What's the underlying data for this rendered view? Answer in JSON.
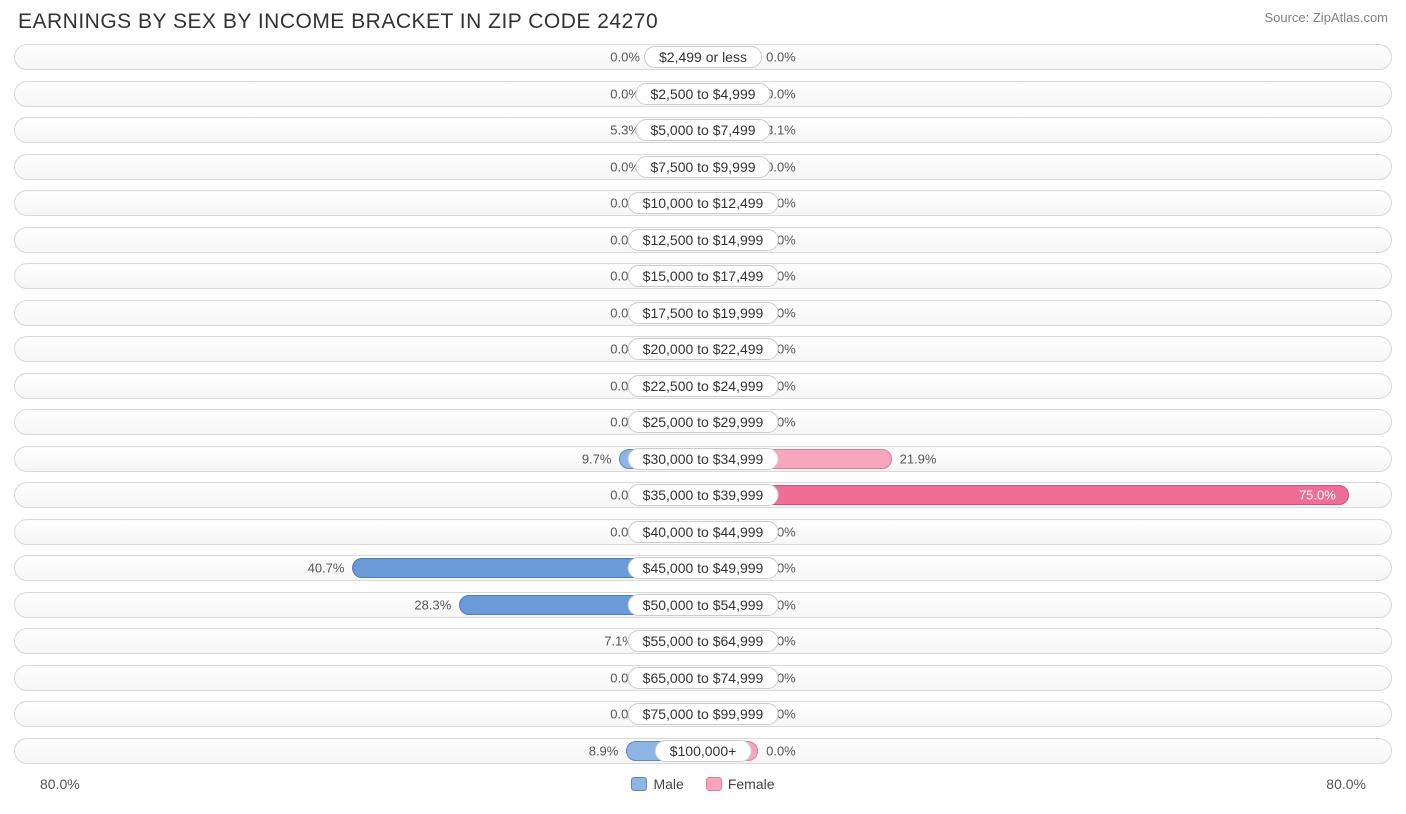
{
  "title": "EARNINGS BY SEX BY INCOME BRACKET IN ZIP CODE 24270",
  "source": "Source: ZipAtlas.com",
  "axis_max_label": "80.0%",
  "axis_max_value": 80.0,
  "min_bar_pct": 8.0,
  "colors": {
    "male_fill": "#8fb5e4",
    "male_border": "#5a8acb",
    "male_strong_fill": "#6a9ad8",
    "male_strong_border": "#4a7bc0",
    "female_fill": "#f7a6bd",
    "female_border": "#e77a9b",
    "female_strong_fill": "#ef6e95",
    "female_strong_border": "#d85079",
    "track_border": "#d9d9d9",
    "text": "#333333",
    "pct_text": "#555555"
  },
  "legend": {
    "male": "Male",
    "female": "Female"
  },
  "rows": [
    {
      "label": "$2,499 or less",
      "male": 0.0,
      "female": 0.0
    },
    {
      "label": "$2,500 to $4,999",
      "male": 0.0,
      "female": 0.0
    },
    {
      "label": "$5,000 to $7,499",
      "male": 5.3,
      "female": 3.1
    },
    {
      "label": "$7,500 to $9,999",
      "male": 0.0,
      "female": 0.0
    },
    {
      "label": "$10,000 to $12,499",
      "male": 0.0,
      "female": 0.0
    },
    {
      "label": "$12,500 to $14,999",
      "male": 0.0,
      "female": 0.0
    },
    {
      "label": "$15,000 to $17,499",
      "male": 0.0,
      "female": 0.0
    },
    {
      "label": "$17,500 to $19,999",
      "male": 0.0,
      "female": 0.0
    },
    {
      "label": "$20,000 to $22,499",
      "male": 0.0,
      "female": 0.0
    },
    {
      "label": "$22,500 to $24,999",
      "male": 0.0,
      "female": 0.0
    },
    {
      "label": "$25,000 to $29,999",
      "male": 0.0,
      "female": 0.0
    },
    {
      "label": "$30,000 to $34,999",
      "male": 9.7,
      "female": 21.9
    },
    {
      "label": "$35,000 to $39,999",
      "male": 0.0,
      "female": 75.0
    },
    {
      "label": "$40,000 to $44,999",
      "male": 0.0,
      "female": 0.0
    },
    {
      "label": "$45,000 to $49,999",
      "male": 40.7,
      "female": 0.0
    },
    {
      "label": "$50,000 to $54,999",
      "male": 28.3,
      "female": 0.0
    },
    {
      "label": "$55,000 to $64,999",
      "male": 7.1,
      "female": 0.0
    },
    {
      "label": "$65,000 to $74,999",
      "male": 0.0,
      "female": 0.0
    },
    {
      "label": "$75,000 to $99,999",
      "male": 0.0,
      "female": 0.0
    },
    {
      "label": "$100,000+",
      "male": 8.9,
      "female": 0.0
    }
  ]
}
